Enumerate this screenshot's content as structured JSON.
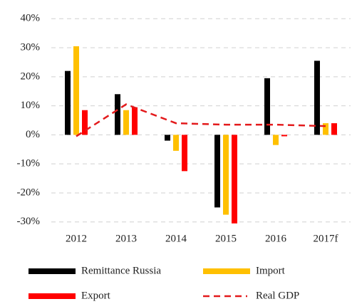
{
  "chart_data": {
    "type": "bar",
    "categories": [
      "2012",
      "2013",
      "2014",
      "2015",
      "2016",
      "2017f"
    ],
    "series": [
      {
        "name": "Remittance Russia",
        "color": "#000000",
        "values": [
          22,
          14,
          -2,
          -25,
          19.5,
          25.5
        ]
      },
      {
        "name": "Import",
        "color": "#ffc000",
        "values": [
          30.5,
          8.5,
          -5.5,
          -27.5,
          -3.5,
          4
        ]
      },
      {
        "name": "Export",
        "color": "#ff0000",
        "values": [
          8.5,
          9.5,
          -12.5,
          -30.5,
          -0.5,
          4
        ]
      },
      {
        "name": "Real GDP",
        "type": "line",
        "color": "#e31a1c",
        "dashed": true,
        "values": [
          -0.5,
          10.5,
          4,
          3.5,
          3.5,
          3
        ]
      }
    ],
    "ylim": [
      -33,
      43
    ],
    "yticks": [
      {
        "value": -30,
        "label": "-30%"
      },
      {
        "value": -20,
        "label": "-20%"
      },
      {
        "value": -10,
        "label": "-10%"
      },
      {
        "value": 0,
        "label": "0%"
      },
      {
        "value": 10,
        "label": "10%"
      },
      {
        "value": 20,
        "label": "20%"
      },
      {
        "value": 30,
        "label": "30%"
      },
      {
        "value": 40,
        "label": "40%"
      }
    ],
    "grid": true
  }
}
